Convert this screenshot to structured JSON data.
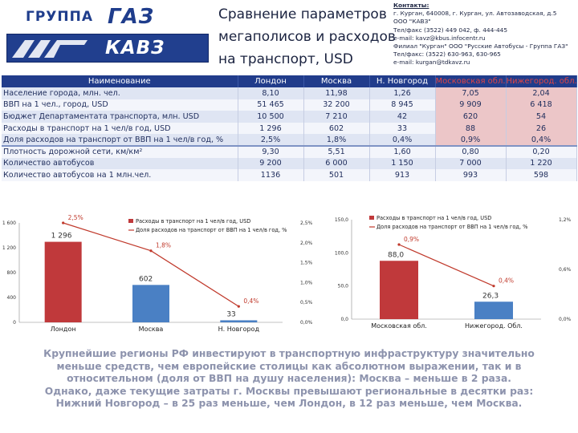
{
  "header": {
    "logo_top_left": "ГРУППА",
    "logo_top_right": "ГАЗ",
    "logo_bottom": "КАВЗ",
    "title_lines": [
      "Сравнение параметров",
      "мегаполисов и расходов",
      "на транспорт, USD"
    ],
    "contacts_label": "Контакты:",
    "contacts_lines": [
      "г. Курган, 640008, г. Курган, ул. Автозаводская, д.5",
      "ООО \"КАВЗ\"",
      "Тел/факс (3522) 449 042, ф. 444-445",
      "e-mail: kavz@kbus.infocentr.ru",
      "Филиал \"Курган\" ООО \"Русские Автобусы - Группа ГАЗ\"",
      "Тел/факс: (3522) 630-963, 630-965",
      "e-mail: kurgan@tdkavz.ru"
    ],
    "colors": {
      "brand_blue": "#213f8e",
      "logo_accent": "#e3e7f2"
    }
  },
  "table": {
    "headers": [
      "Наименование",
      "Лондон",
      "Москва",
      "Н. Новгород",
      "Московская обл.",
      "Нижегород. обл."
    ],
    "rows": [
      [
        "Население города, млн. чел.",
        "8,10",
        "11,98",
        "1,26",
        "7,05",
        "2,04"
      ],
      [
        "ВВП на 1 чел., город, USD",
        "51 465",
        "32 200",
        "8 945",
        "9 909",
        "6 418"
      ],
      [
        "Бюджет Департаментата транспорта, млн. USD",
        "10 500",
        "7 210",
        "42",
        "620",
        "54"
      ],
      [
        "Расходы в транспорт на 1 чел/в год, USD",
        "1 296",
        "602",
        "33",
        "88",
        "26"
      ],
      [
        "Доля расходов на транспорт от ВВП на 1 чел/в год, %",
        "2,5%",
        "1,8%",
        "0,4%",
        "0,9%",
        "0,4%"
      ],
      [
        "Плотность дорожной сети, км/км²",
        "9,30",
        "5,51",
        "1,60",
        "0,80",
        "0,20"
      ],
      [
        "Количество автобусов",
        "9 200",
        "6 000",
        "1 150",
        "7 000",
        "1 220"
      ],
      [
        "Количество автобусов на 1 млн.чел.",
        "1136",
        "501",
        "913",
        "993",
        "598"
      ]
    ],
    "colors": {
      "header_bg": "#213c8b",
      "header_highlight": "#e04545",
      "row_odd": "#dfe5f3",
      "row_even": "#f3f5fb",
      "pink": "#ecc6c8"
    }
  },
  "chart_data": [
    {
      "type": "bar",
      "categories": [
        "Лондон",
        "Москва",
        "Н. Новгород"
      ],
      "series": [
        {
          "name": "Расходы в транспорт на 1 чел/в год, USD",
          "values": [
            1296,
            602,
            33
          ],
          "labels": [
            "1 296",
            "602",
            "33"
          ],
          "color": "#c0393b",
          "axis": "left"
        },
        {
          "name": "Доля расходов на транспорт от ВВП на 1 чел/в год, %",
          "type": "line",
          "values": [
            2.5,
            1.8,
            0.4
          ],
          "labels": [
            "2,5%",
            "1,8%",
            "0,4%"
          ],
          "color": "#c0392b",
          "axis": "right"
        }
      ],
      "bar_colors": [
        "#c0393b",
        "#4a80c4",
        "#4a80c4"
      ],
      "ylim": [
        0,
        1600
      ],
      "yticks": [
        "0",
        "400",
        "800",
        "1 200",
        "1 600"
      ],
      "y2lim": [
        0,
        2.5
      ],
      "y2ticks": [
        "0,0%",
        "0,5%",
        "1,0%",
        "1,5%",
        "2,0%",
        "2,5%"
      ],
      "legend": "top"
    },
    {
      "type": "bar",
      "categories": [
        "Московская обл.",
        "Нижегород. Обл."
      ],
      "series": [
        {
          "name": "Расходы в транспорт на 1 чел/в год, USD",
          "values": [
            88.0,
            26.3
          ],
          "labels": [
            "88,0",
            "26,3"
          ],
          "color": "#c0393b",
          "axis": "left"
        },
        {
          "name": "Доля расходов на транспорт от ВВП на 1 чел/в год, %",
          "type": "line",
          "values": [
            0.9,
            0.4
          ],
          "labels": [
            "0,9%",
            "0,4%"
          ],
          "color": "#c0392b",
          "axis": "right"
        }
      ],
      "bar_colors": [
        "#c0393b",
        "#4a80c4"
      ],
      "ylim": [
        0,
        150
      ],
      "yticks": [
        "0,0",
        "50,0",
        "100,0",
        "150,0"
      ],
      "y2lim": [
        0,
        1.2
      ],
      "y2ticks": [
        "0,0%",
        "0,6%",
        "1,2%"
      ],
      "legend": "top"
    }
  ],
  "conclusion_lines": [
    "Крупнейшие регионы РФ инвестируют в транспортную инфраструктуру значительно",
    "меньше средств, чем европейские столицы  как абсолютном выражении, так и в",
    "относительном (доля от ВВП на душу населения):  Москва – меньше в 2 раза.",
    "Однако, даже текущие затраты г. Москвы превышают региональные в десятки раз:",
    "Нижний Новгород – в 25 раз меньше, чем Лондон, в 12 раз меньше, чем Москва."
  ]
}
